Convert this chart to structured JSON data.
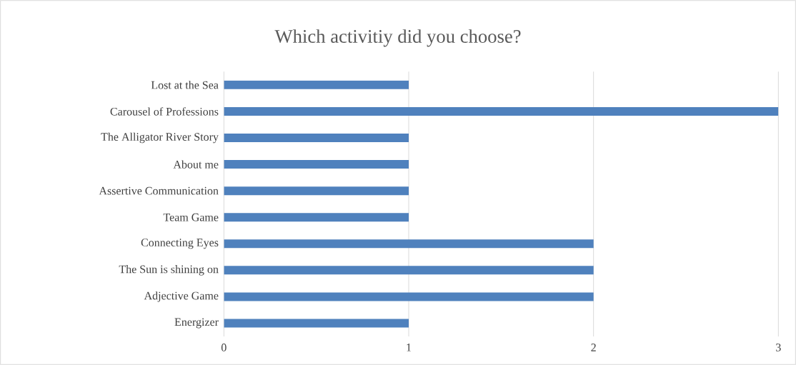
{
  "chart_data": {
    "type": "bar",
    "orientation": "horizontal",
    "title": "Which activitiy did you choose?",
    "categories": [
      "Lost at the Sea",
      "Carousel of Professions",
      "The Alligator River Story",
      "About me",
      "Assertive Communication",
      "Team Game",
      "Connecting Eyes",
      "The Sun is shining on",
      "Adjective Game",
      "Energizer"
    ],
    "values": [
      1,
      3,
      1,
      1,
      1,
      1,
      2,
      2,
      2,
      1
    ],
    "color": "#4f81bd",
    "xlim": [
      0,
      3
    ],
    "xticks": [
      0,
      1,
      2,
      3
    ],
    "grid": "x"
  }
}
